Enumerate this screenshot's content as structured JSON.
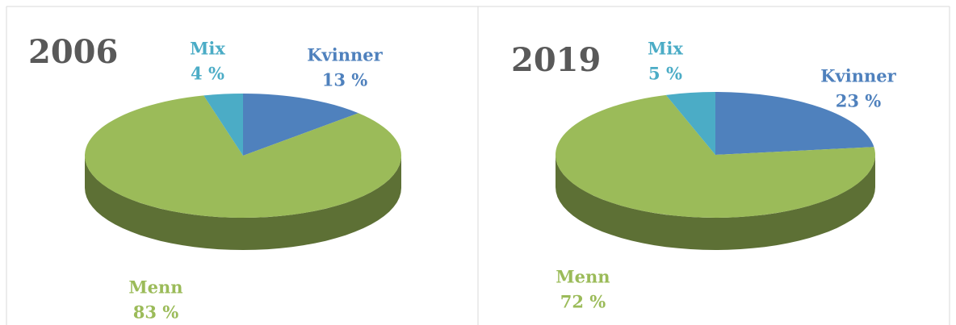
{
  "chart_data": [
    {
      "type": "pie",
      "title": "2006",
      "categories": [
        "Kvinner",
        "Menn",
        "Mix"
      ],
      "values": [
        13,
        83,
        4
      ],
      "value_labels": [
        "13 %",
        "83 %",
        "4 %"
      ],
      "colors": [
        "#4f81bd",
        "#9bbb59",
        "#4bacc6"
      ]
    },
    {
      "type": "pie",
      "title": "2019",
      "categories": [
        "Kvinner",
        "Menn",
        "Mix"
      ],
      "values": [
        23,
        72,
        5
      ],
      "value_labels": [
        "23 %",
        "72 %",
        "5 %"
      ],
      "colors": [
        "#4f81bd",
        "#9bbb59",
        "#4bacc6"
      ]
    }
  ]
}
